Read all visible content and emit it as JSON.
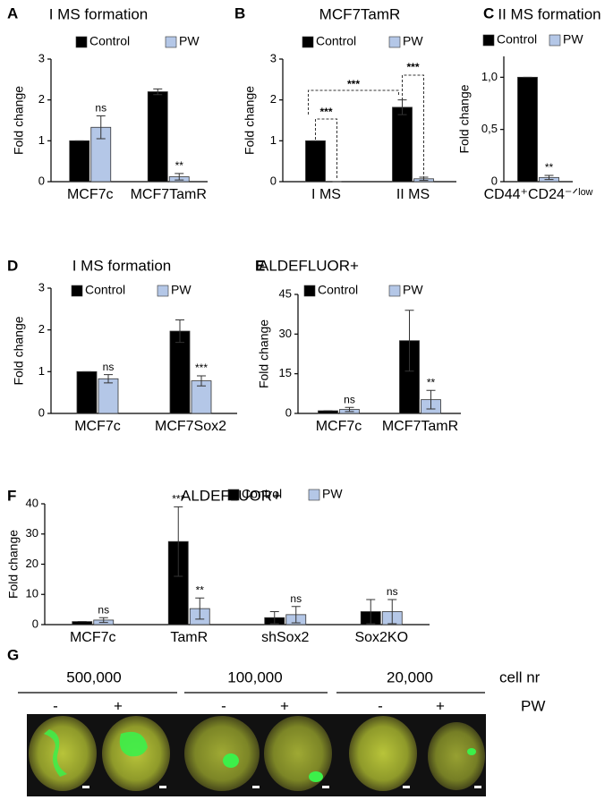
{
  "chart_data": [
    {
      "type": "bar",
      "panel": "A",
      "title": "I MS formation",
      "ylabel": "Fold change",
      "categories": [
        "MCF7c",
        "MCF7TamR"
      ],
      "series": [
        {
          "name": "Control",
          "color": "#000000",
          "values": [
            1,
            2.2
          ],
          "errors": [
            0,
            0.07
          ],
          "sig": [
            null,
            null
          ]
        },
        {
          "name": "PW",
          "color": "#b4c7e7",
          "values": [
            1.33,
            0.12
          ],
          "errors": [
            0.28,
            0.08
          ],
          "sig": [
            "ns",
            "**"
          ]
        }
      ],
      "ylim": [
        0,
        3
      ],
      "yticks": [
        0,
        1,
        2,
        3
      ]
    },
    {
      "type": "bar",
      "panel": "B",
      "title": "MCF7TamR",
      "ylabel": "Fold change",
      "categories": [
        "I MS",
        "II MS"
      ],
      "series": [
        {
          "name": "Control",
          "color": "#000000",
          "values": [
            1,
            1.82
          ],
          "errors": [
            0,
            0.18
          ],
          "sig": [
            null,
            null
          ]
        },
        {
          "name": "PW",
          "color": "#b4c7e7",
          "values": [
            0,
            0.07
          ],
          "errors": [
            0,
            0.04
          ],
          "sig": [
            null,
            null
          ]
        }
      ],
      "brackets": [
        "***",
        "***",
        "***"
      ],
      "ylim": [
        0,
        3
      ],
      "yticks": [
        0,
        1,
        2,
        3
      ]
    },
    {
      "type": "bar",
      "panel": "C",
      "title": "II MS formation",
      "ylabel": "Fold change",
      "categories": [
        "CD44⁺CD24⁻ᐟˡᵒʷ"
      ],
      "series": [
        {
          "name": "Control",
          "color": "#000000",
          "values": [
            1
          ],
          "errors": [
            0
          ],
          "sig": [
            null
          ]
        },
        {
          "name": "PW",
          "color": "#b4c7e7",
          "values": [
            0.04
          ],
          "errors": [
            0.02
          ],
          "sig": [
            "**"
          ]
        }
      ],
      "ylim": [
        0,
        1.2
      ],
      "yticks": [
        0,
        {
          "value": 0.5,
          "label": "0,5"
        },
        {
          "value": 1,
          "label": "1,0"
        }
      ]
    },
    {
      "type": "bar",
      "panel": "D",
      "title": "I MS formation",
      "ylabel": "Fold change",
      "categories": [
        "MCF7c",
        "MCF7Sox2"
      ],
      "series": [
        {
          "name": "Control",
          "color": "#000000",
          "values": [
            1,
            1.97
          ],
          "errors": [
            0,
            0.27
          ],
          "sig": [
            null,
            null
          ]
        },
        {
          "name": "PW",
          "color": "#b4c7e7",
          "values": [
            0.83,
            0.78
          ],
          "errors": [
            0.1,
            0.12
          ],
          "sig": [
            "ns",
            "***"
          ]
        }
      ],
      "ylim": [
        0,
        3
      ],
      "yticks": [
        0,
        1,
        2,
        3
      ]
    },
    {
      "type": "bar",
      "panel": "E",
      "title": "ALDEFLUOR+",
      "ylabel": "Fold change",
      "categories": [
        "MCF7c",
        "MCF7TamR"
      ],
      "series": [
        {
          "name": "Control",
          "color": "#000000",
          "values": [
            1,
            27.5
          ],
          "errors": [
            0,
            11.5
          ],
          "sig": [
            null,
            null
          ]
        },
        {
          "name": "PW",
          "color": "#b4c7e7",
          "values": [
            1.5,
            5.2
          ],
          "errors": [
            0.8,
            3.5
          ],
          "sig": [
            "ns",
            "**"
          ]
        }
      ],
      "ylim": [
        0,
        45
      ],
      "yticks": [
        0,
        15,
        30,
        45
      ]
    },
    {
      "type": "bar",
      "panel": "F",
      "title": "ALDEFLUOR+",
      "ylabel": "Fold change",
      "categories": [
        "MCF7c",
        "TamR",
        "shSox2",
        "Sox2KO"
      ],
      "series": [
        {
          "name": "Control",
          "color": "#000000",
          "values": [
            1,
            27.5,
            2.3,
            4.3
          ],
          "errors": [
            0,
            11.5,
            2,
            4
          ],
          "sig": [
            null,
            "***",
            null,
            null
          ]
        },
        {
          "name": "PW",
          "color": "#b4c7e7",
          "values": [
            1.5,
            5.3,
            3.3,
            4.3
          ],
          "errors": [
            0.8,
            3.5,
            2.7,
            4
          ],
          "sig": [
            "ns",
            "**",
            "ns",
            "ns"
          ]
        }
      ],
      "ylim": [
        0,
        40
      ],
      "yticks": [
        0,
        10,
        20,
        30,
        40
      ]
    }
  ],
  "panel_g": {
    "panel": "G",
    "groups": [
      "500,000",
      "100,000",
      "20,000"
    ],
    "unit": "cell nr",
    "treatment_signs": [
      "-",
      "+",
      "-",
      "+",
      "-",
      "+"
    ],
    "treatment": "PW"
  }
}
